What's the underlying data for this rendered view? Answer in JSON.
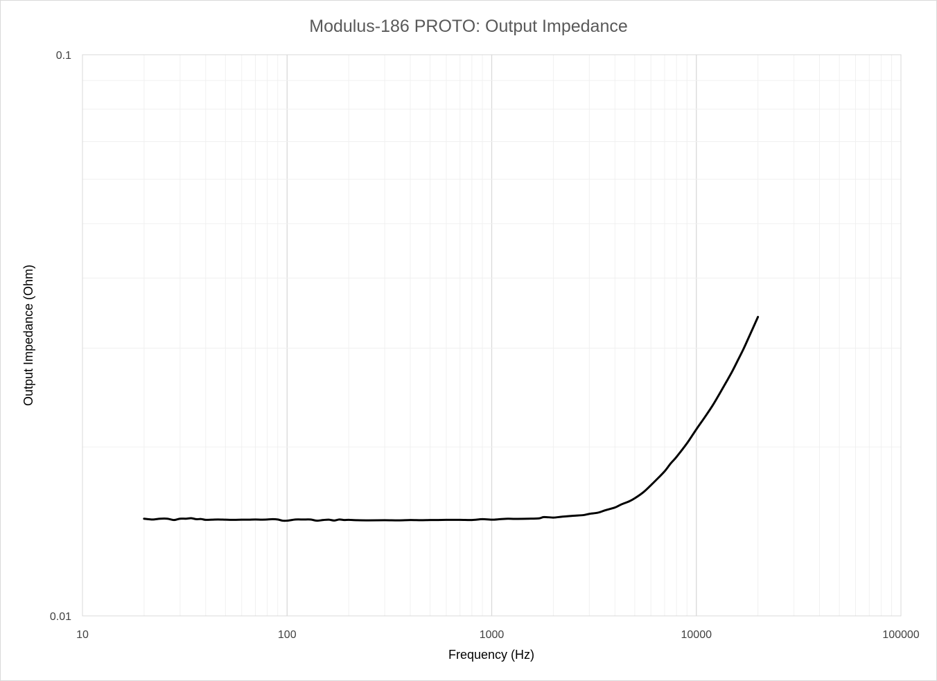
{
  "chart_data": {
    "type": "line",
    "title": "Modulus-186 PROTO: Output Impedance",
    "xlabel": "Frequency (Hz)",
    "ylabel": "Output Impedance (Ohm)",
    "x_scale": "log",
    "y_scale": "log",
    "xlim": [
      10,
      100000
    ],
    "ylim": [
      0.01,
      0.1
    ],
    "x_ticks": [
      "10",
      "100",
      "1000",
      "10000",
      "100000"
    ],
    "y_ticks": [
      "0.01",
      "0.1"
    ],
    "grid": true,
    "legend": "none",
    "colors": {
      "line": "#000000",
      "major_grid": "#d9d9d9",
      "minor_grid": "#f0f0f0",
      "title": "#595959",
      "tick_text": "#404040"
    },
    "series": [
      {
        "x": [
          20,
          22,
          24,
          26,
          28,
          30,
          32,
          34,
          36,
          38,
          40,
          43,
          46,
          50,
          55,
          60,
          65,
          70,
          75,
          80,
          85,
          90,
          95,
          100,
          110,
          120,
          130,
          140,
          150,
          160,
          170,
          180,
          190,
          200,
          220,
          250,
          300,
          350,
          400,
          450,
          500,
          550,
          600,
          700,
          800,
          900,
          1000,
          1100,
          1200,
          1300,
          1500,
          1700,
          1800,
          2000,
          2200,
          2500,
          2800,
          3000,
          3300,
          3600,
          4000,
          4300,
          4700,
          5000,
          5500,
          6000,
          6500,
          7000,
          7500,
          8000,
          9000,
          10000,
          11000,
          12000,
          13000,
          14000,
          15000,
          16000,
          17000,
          18000,
          19000,
          20000
        ],
        "y": [
          0.0149,
          0.01485,
          0.0149,
          0.0149,
          0.01482,
          0.0149,
          0.0149,
          0.01493,
          0.01487,
          0.01488,
          0.01483,
          0.01484,
          0.01485,
          0.01484,
          0.01483,
          0.01484,
          0.01484,
          0.01485,
          0.01484,
          0.01485,
          0.01487,
          0.01485,
          0.01478,
          0.01478,
          0.01485,
          0.01485,
          0.01485,
          0.01478,
          0.01482,
          0.01484,
          0.01479,
          0.01485,
          0.01482,
          0.01483,
          0.01481,
          0.0148,
          0.01481,
          0.0148,
          0.01482,
          0.01481,
          0.01482,
          0.01482,
          0.01483,
          0.01483,
          0.01482,
          0.01487,
          0.01484,
          0.01487,
          0.0149,
          0.01489,
          0.0149,
          0.01492,
          0.015,
          0.01497,
          0.01502,
          0.01508,
          0.01512,
          0.0152,
          0.01527,
          0.01543,
          0.0156,
          0.0158,
          0.016,
          0.0162,
          0.0166,
          0.0171,
          0.0176,
          0.0181,
          0.0187,
          0.0192,
          0.0203,
          0.0215,
          0.0226,
          0.0237,
          0.0249,
          0.0261,
          0.0273,
          0.0286,
          0.0299,
          0.0313,
          0.0327,
          0.0341
        ]
      }
    ]
  }
}
